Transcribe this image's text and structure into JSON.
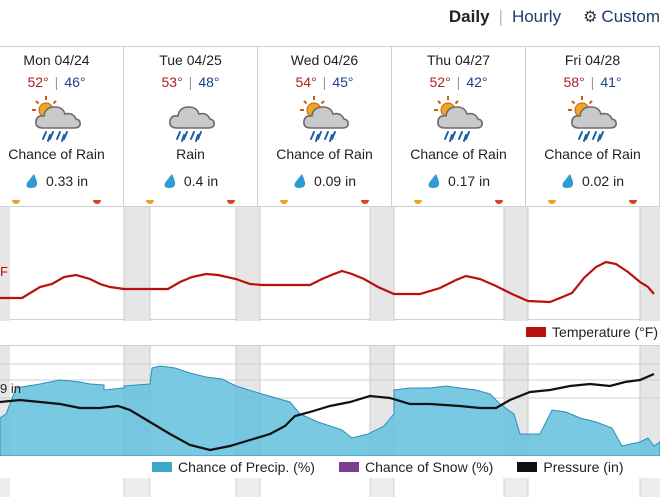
{
  "view_toggle": {
    "daily": "Daily",
    "hourly": "Hourly",
    "custom": "Custom"
  },
  "days": [
    {
      "date": "Mon 04/24",
      "high": "52°",
      "low": "46°",
      "icon": "partly-sunny-rain-icon",
      "condition": "Chance of Rain",
      "precip": "0.33 in"
    },
    {
      "date": "Tue 04/25",
      "high": "53°",
      "low": "48°",
      "icon": "cloud-rain-icon",
      "condition": "Rain",
      "precip": "0.4 in"
    },
    {
      "date": "Wed 04/26",
      "high": "54°",
      "low": "45°",
      "icon": "partly-sunny-rain-icon",
      "condition": "Chance of Rain",
      "precip": "0.09 in"
    },
    {
      "date": "Thu 04/27",
      "high": "52°",
      "low": "42°",
      "icon": "partly-sunny-rain-icon",
      "condition": "Chance of Rain",
      "precip": "0.17 in"
    },
    {
      "date": "Fri 04/28",
      "high": "58°",
      "low": "41°",
      "icon": "partly-sunny-rain-icon",
      "condition": "Chance of Rain",
      "precip": "0.02 in"
    }
  ],
  "temp_chart": {
    "axis_fragment": "F",
    "legend": "Temperature (°F)",
    "color": "#b80f0f"
  },
  "precip_chart": {
    "axis_fragment": "9 in",
    "legends": {
      "precip": "Chance of Precip. (%)",
      "snow": "Chance of Snow (%)",
      "pressure": "Pressure (in)"
    },
    "colors": {
      "precip": "#3ea8cc",
      "snow": "#7a3f8f",
      "pressure": "#111111"
    }
  },
  "colors": {
    "high": "#b21e1e",
    "low": "#1b3f8a",
    "link": "#1a3d6b"
  }
}
